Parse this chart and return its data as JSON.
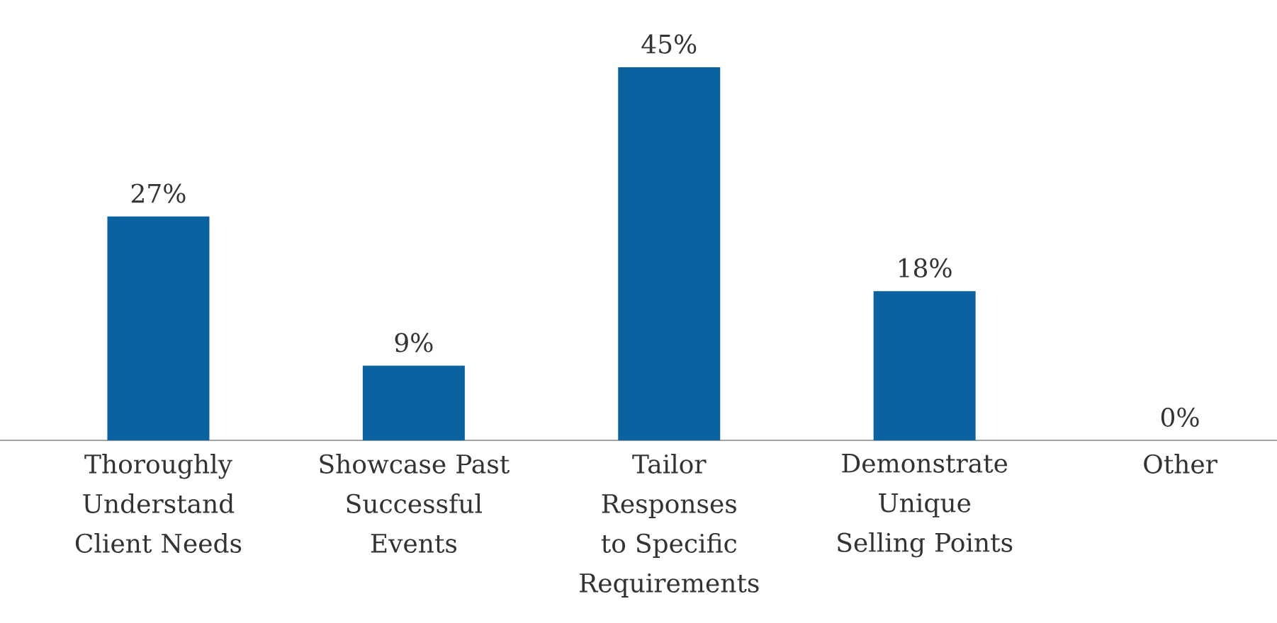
{
  "chart_data": {
    "type": "bar",
    "categories": [
      "Thoroughly Understand Client Needs",
      "Showcase Past Successful Events",
      "Tailor Responses to Specific Requirements",
      "Demonstrate Unique Selling Points",
      "Other"
    ],
    "values": [
      27,
      9,
      45,
      18,
      0
    ],
    "color": "#0b62a1",
    "value_labels": [
      "27%",
      "9%",
      "45%",
      "18%",
      "0%"
    ]
  }
}
